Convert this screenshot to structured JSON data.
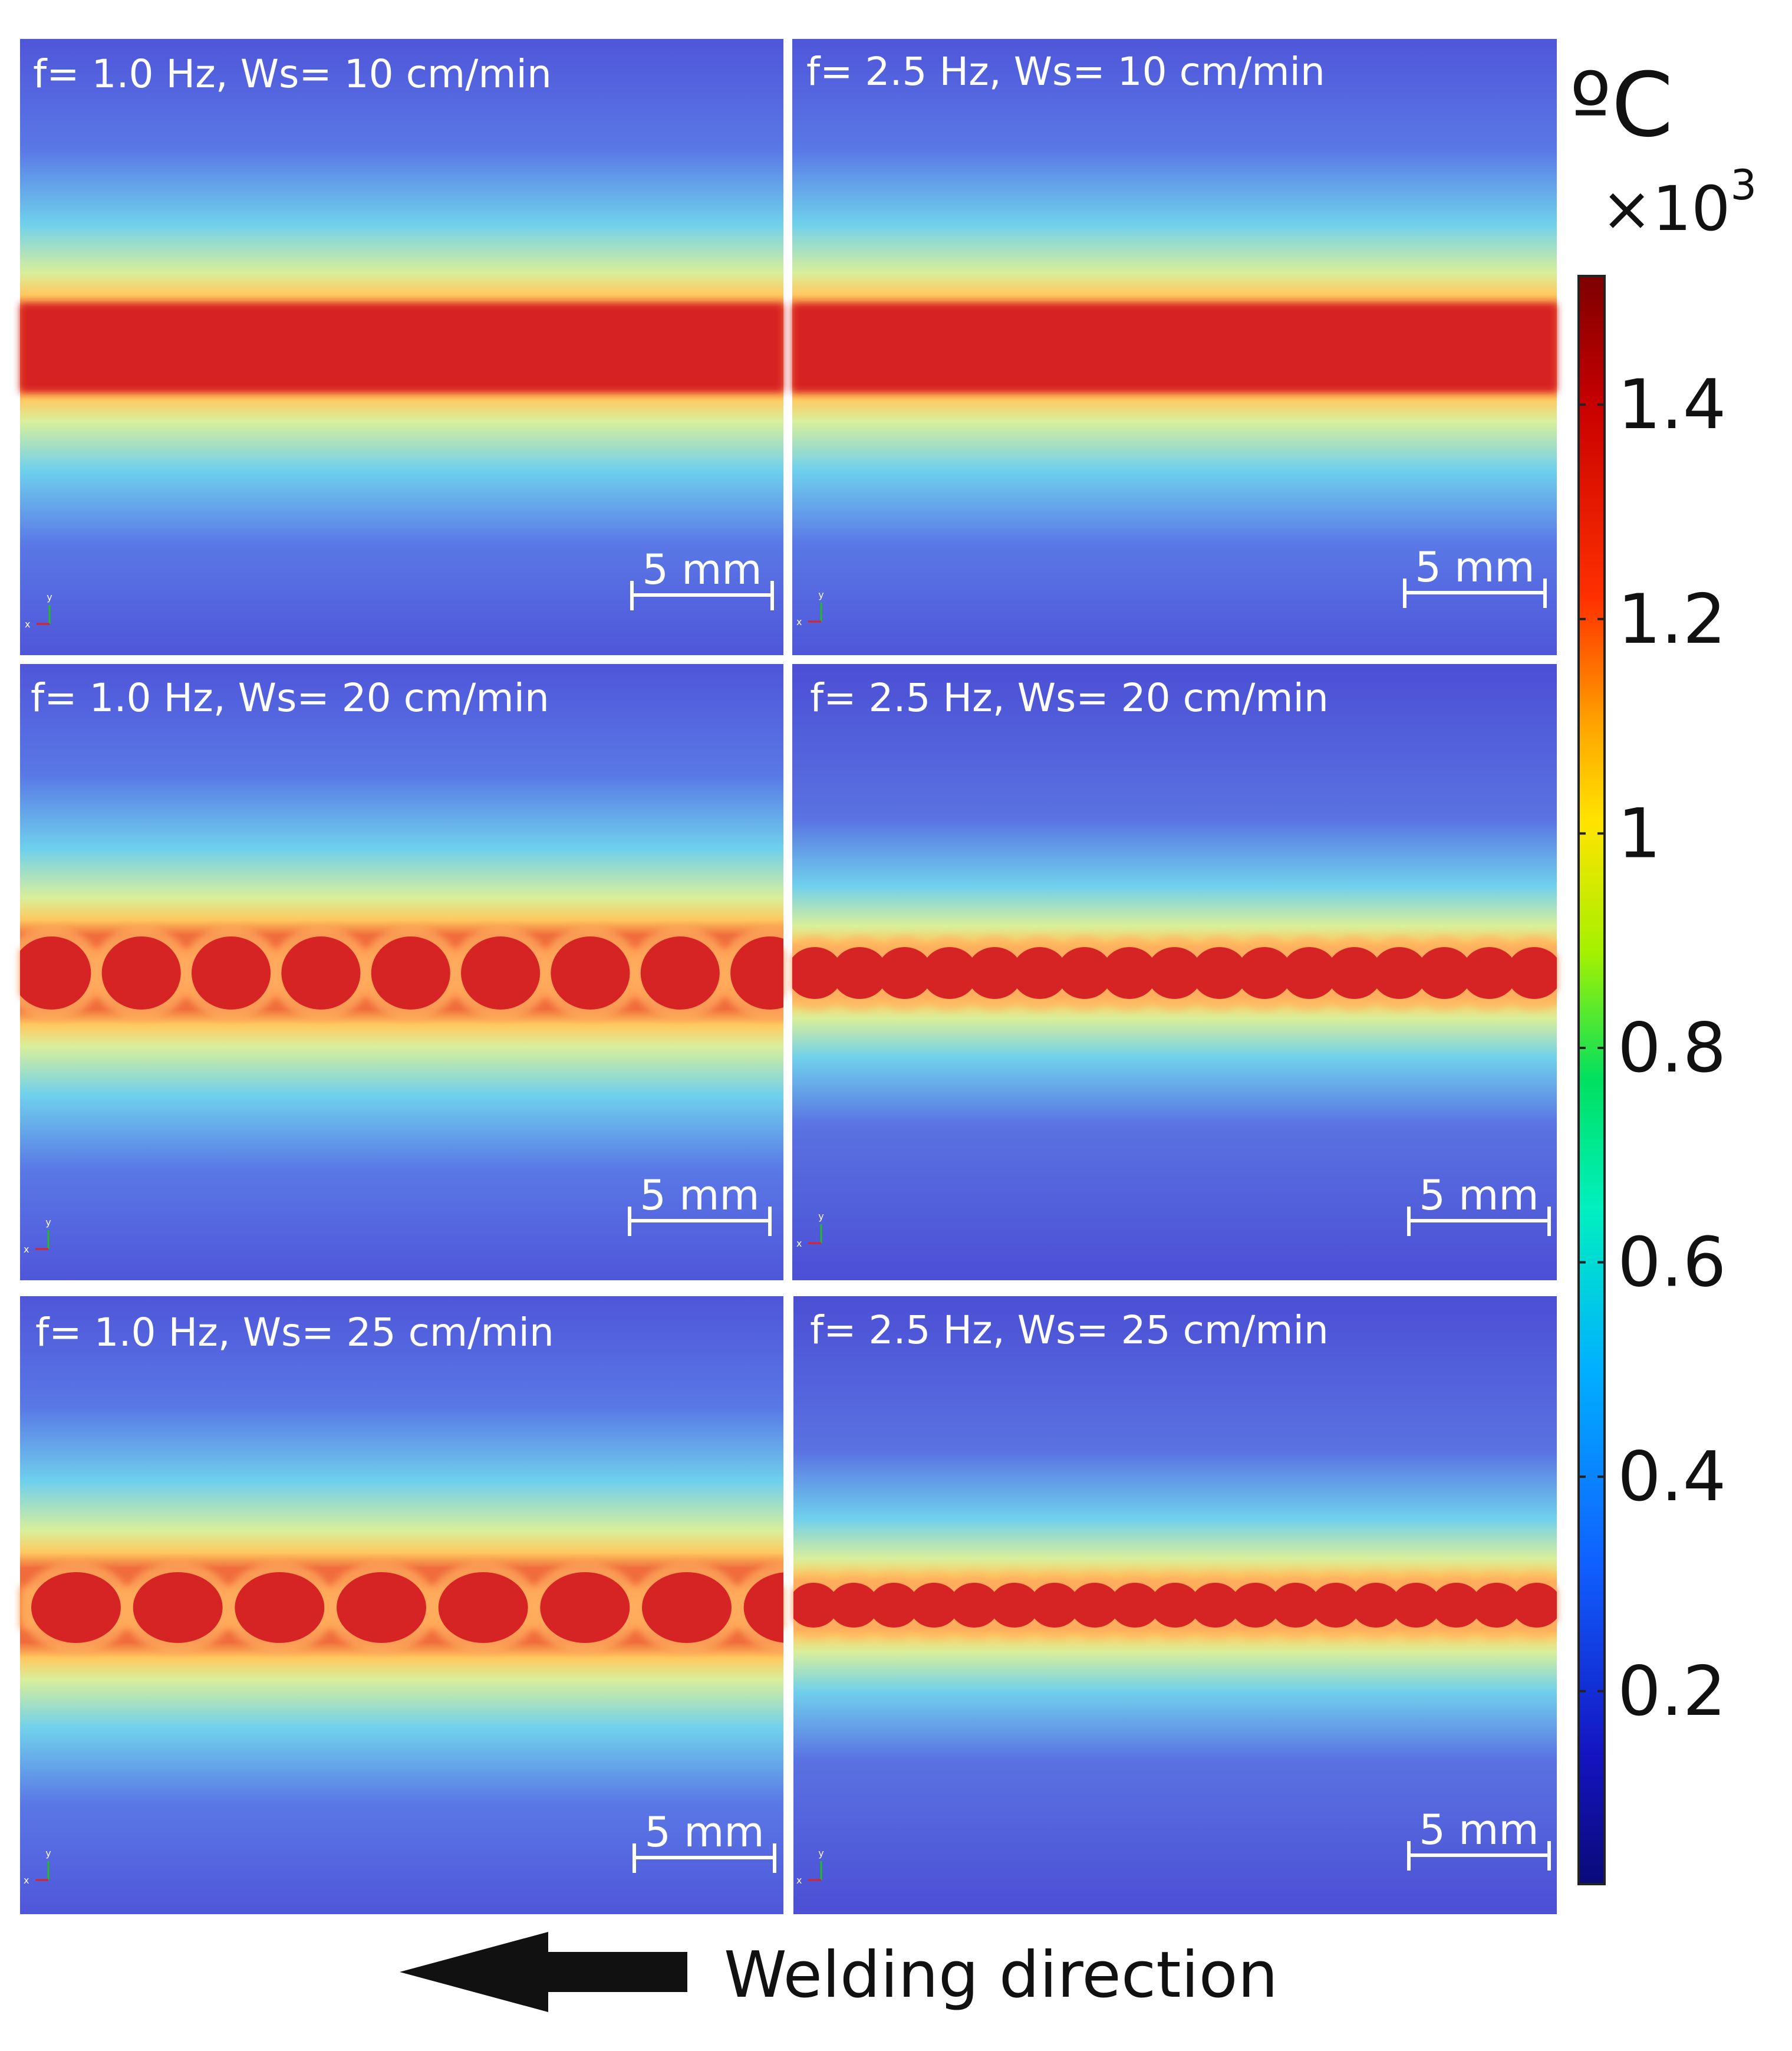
{
  "figure": {
    "panels": [
      {
        "label": "f= 1.0 Hz, Ws= 10 cm/min",
        "frequency_hz": 1.0,
        "welding_speed_cm_min": 10,
        "pool_pattern": "continuous",
        "scale_bar": "5 mm",
        "axis_y": "y",
        "axis_x": "x"
      },
      {
        "label": "f= 2.5 Hz, Ws= 10 cm/min",
        "frequency_hz": 2.5,
        "welding_speed_cm_min": 10,
        "pool_pattern": "continuous",
        "scale_bar": "5 mm",
        "axis_y": "y",
        "axis_x": "x"
      },
      {
        "label": "f= 1.0 Hz, Ws= 20 cm/min",
        "frequency_hz": 1.0,
        "welding_speed_cm_min": 20,
        "pool_pattern": "discrete-spots",
        "spot_count": 8.5,
        "scale_bar": "5 mm",
        "axis_y": "y",
        "axis_x": "x"
      },
      {
        "label": "f= 2.5 Hz, Ws= 20 cm/min",
        "frequency_hz": 2.5,
        "welding_speed_cm_min": 20,
        "pool_pattern": "overlapping-spots",
        "spot_count": 17,
        "scale_bar": "5 mm",
        "axis_y": "y",
        "axis_x": "x"
      },
      {
        "label": "f= 1.0 Hz, Ws= 25 cm/min",
        "frequency_hz": 1.0,
        "welding_speed_cm_min": 25,
        "pool_pattern": "discrete-spots",
        "spot_count": 7.5,
        "scale_bar": "5 mm",
        "axis_y": "y",
        "axis_x": "x"
      },
      {
        "label": "f= 2.5 Hz, Ws= 25 cm/min",
        "frequency_hz": 2.5,
        "welding_speed_cm_min": 25,
        "pool_pattern": "overlapping-spots",
        "spot_count": 19,
        "scale_bar": "5 mm",
        "axis_y": "y",
        "axis_x": "x"
      }
    ],
    "colorbar": {
      "unit": "ºC",
      "multiplier": "×10",
      "multiplier_exp": "3",
      "ticks": [
        "1.4",
        "1.2",
        "1",
        "0.8",
        "0.6",
        "0.4",
        "0.2"
      ],
      "tick_values": [
        1.4,
        1.2,
        1.0,
        0.8,
        0.6,
        0.4,
        0.2
      ],
      "range": [
        0.02,
        1.52
      ],
      "colors": [
        "#7d0000",
        "#c80000",
        "#ff3000",
        "#ffa500",
        "#ffe400",
        "#a6f000",
        "#00e060",
        "#00f0c0",
        "#00b0ff",
        "#1060ff",
        "#1414c0",
        "#0a0a78"
      ]
    },
    "direction_label": "Welding direction",
    "direction_icon": "left-arrow-icon"
  }
}
